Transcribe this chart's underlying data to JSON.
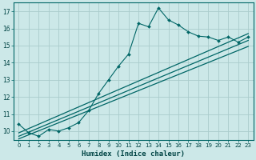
{
  "title": "",
  "xlabel": "Humidex (Indice chaleur)",
  "ylabel": "",
  "bg_color": "#cce8e8",
  "grid_color": "#aacccc",
  "line_color": "#006666",
  "x_data": [
    0,
    1,
    2,
    3,
    4,
    5,
    6,
    7,
    8,
    9,
    10,
    11,
    12,
    13,
    14,
    15,
    16,
    17,
    18,
    19,
    20,
    21,
    22,
    23
  ],
  "y_data": [
    10.4,
    9.9,
    9.7,
    10.1,
    10.0,
    10.2,
    10.5,
    11.2,
    12.2,
    13.0,
    13.8,
    14.5,
    16.3,
    16.1,
    17.2,
    16.5,
    16.2,
    15.8,
    15.55,
    15.5,
    15.3,
    15.5,
    15.2,
    15.5
  ],
  "ylim": [
    9.5,
    17.5
  ],
  "xlim": [
    -0.5,
    23.5
  ],
  "yticks": [
    10,
    11,
    12,
    13,
    14,
    15,
    16,
    17
  ],
  "xticks": [
    0,
    1,
    2,
    3,
    4,
    5,
    6,
    7,
    8,
    9,
    10,
    11,
    12,
    13,
    14,
    15,
    16,
    17,
    18,
    19,
    20,
    21,
    22,
    23
  ],
  "trend1_x": [
    0,
    23
  ],
  "trend1_y": [
    9.9,
    15.7
  ],
  "trend2_x": [
    0,
    23
  ],
  "trend2_y": [
    9.7,
    15.3
  ],
  "trend3_x": [
    0,
    23
  ],
  "trend3_y": [
    9.55,
    14.95
  ]
}
